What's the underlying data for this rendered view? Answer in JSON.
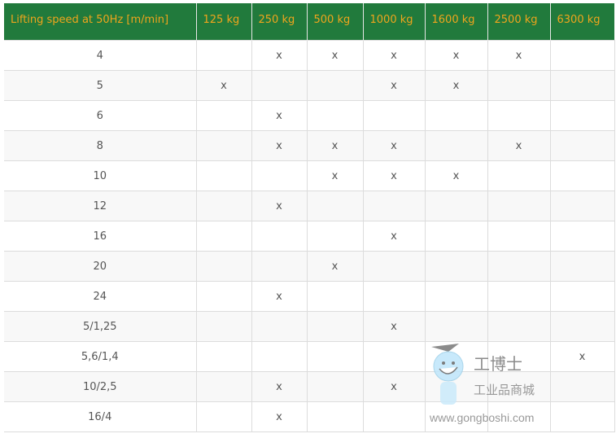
{
  "table": {
    "headers": [
      "Lifting speed at 50Hz [m/min]",
      "125 kg",
      "250 kg",
      "500 kg",
      "1000 kg",
      "1600 kg",
      "2500 kg",
      "6300 kg"
    ],
    "rows": [
      [
        "4",
        "",
        "x",
        "x",
        "x",
        "x",
        "x",
        ""
      ],
      [
        "5",
        "x",
        "",
        "",
        "x",
        "x",
        "",
        ""
      ],
      [
        "6",
        "",
        "x",
        "",
        "",
        "",
        "",
        ""
      ],
      [
        "8",
        "",
        "x",
        "x",
        "x",
        "",
        "x",
        ""
      ],
      [
        "10",
        "",
        "",
        "x",
        "x",
        "x",
        "",
        ""
      ],
      [
        "12",
        "",
        "x",
        "",
        "",
        "",
        "",
        ""
      ],
      [
        "16",
        "",
        "",
        "",
        "x",
        "",
        "",
        ""
      ],
      [
        "20",
        "",
        "",
        "x",
        "",
        "",
        "",
        ""
      ],
      [
        "24",
        "",
        "x",
        "",
        "",
        "",
        "",
        ""
      ],
      [
        "5/1,25",
        "",
        "",
        "",
        "x",
        "",
        "",
        ""
      ],
      [
        "5,6/1,4",
        "",
        "",
        "",
        "",
        "",
        "",
        "x"
      ],
      [
        "10/2,5",
        "",
        "x",
        "",
        "x",
        "",
        "",
        ""
      ],
      [
        "16/4",
        "",
        "x",
        "",
        "",
        "",
        "",
        ""
      ]
    ]
  },
  "colors": {
    "header_bg": "#217a3c",
    "header_text": "#f0a51c"
  },
  "watermark": {
    "brand": "工博士",
    "tagline": "工业品商城",
    "url": "www.gongboshi.com"
  }
}
